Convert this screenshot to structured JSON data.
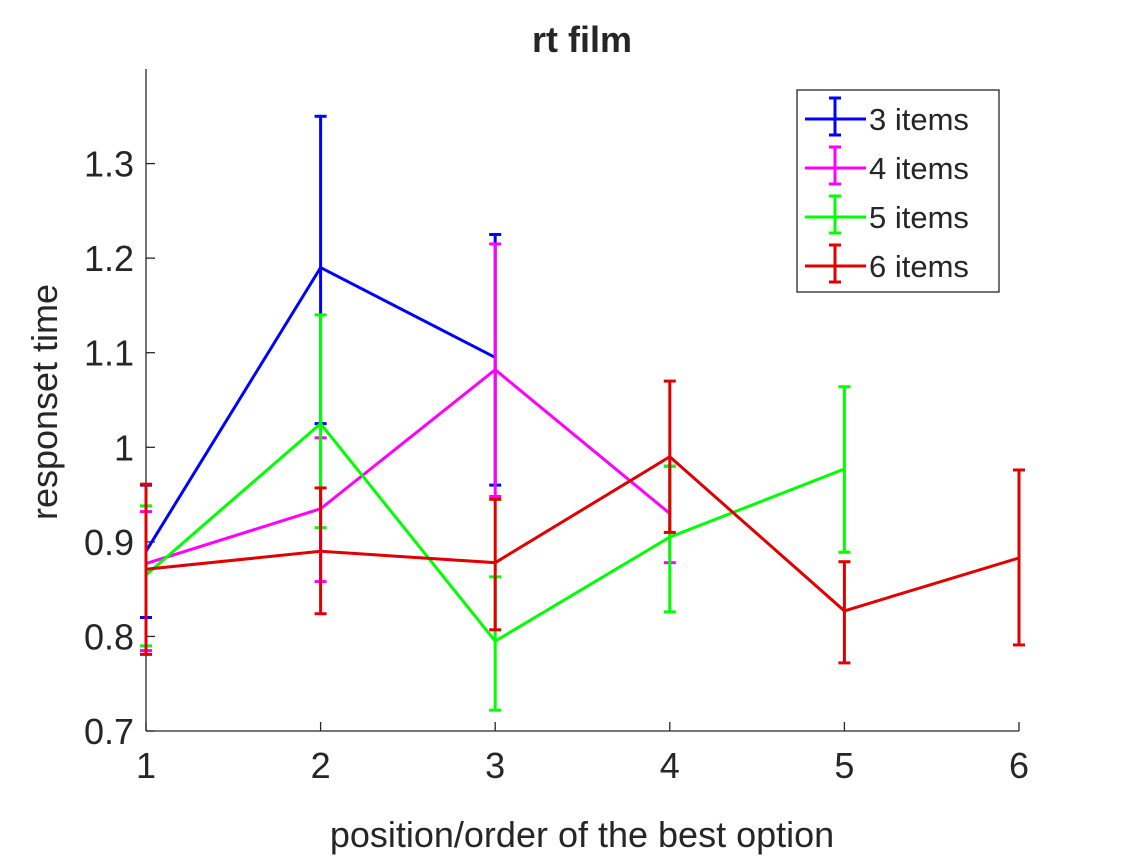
{
  "chart_data": {
    "type": "line",
    "title": "rt film",
    "xlabel": "position/order of the best option",
    "ylabel": "responset time",
    "xlim": [
      1,
      6
    ],
    "ylim": [
      0.7,
      1.4
    ],
    "xticks": [
      1,
      2,
      3,
      4,
      5,
      6
    ],
    "xtick_labels": [
      "1",
      "2",
      "3",
      "4",
      "5",
      "6"
    ],
    "yticks": [
      0.7,
      0.8,
      0.9,
      1.0,
      1.1,
      1.2,
      1.3
    ],
    "ytick_labels": [
      "0.7",
      "0.8",
      "0.9",
      "1",
      "1.1",
      "1.2",
      "1.3"
    ],
    "grid": false,
    "legend_position": "top-right",
    "error_bars": true,
    "series": [
      {
        "name": "3 items",
        "color": "#0000ff",
        "x": [
          1,
          2,
          3
        ],
        "y": [
          0.89,
          1.19,
          1.095
        ],
        "err_low": [
          0.82,
          1.025,
          0.96
        ],
        "err_high": [
          0.96,
          1.35,
          1.225
        ]
      },
      {
        "name": "4 items",
        "color": "#ff00ff",
        "x": [
          1,
          2,
          3,
          4
        ],
        "y": [
          0.877,
          0.935,
          1.082,
          0.93
        ],
        "err_low": [
          0.785,
          0.858,
          0.948,
          0.878
        ],
        "err_high": [
          0.932,
          1.01,
          1.215,
          0.98
        ]
      },
      {
        "name": "5 items",
        "color": "#00ff00",
        "x": [
          1,
          2,
          3,
          4,
          5
        ],
        "y": [
          0.865,
          1.025,
          0.795,
          0.905,
          0.977
        ],
        "err_low": [
          0.79,
          0.915,
          0.722,
          0.826,
          0.889
        ],
        "err_high": [
          0.938,
          1.14,
          0.863,
          0.98,
          1.064
        ]
      },
      {
        "name": "6 items",
        "color": "#e00000",
        "x": [
          1,
          2,
          3,
          4,
          5,
          6
        ],
        "y": [
          0.871,
          0.89,
          0.878,
          0.99,
          0.827,
          0.883
        ],
        "err_low": [
          0.781,
          0.824,
          0.807,
          0.91,
          0.772,
          0.791
        ],
        "err_high": [
          0.961,
          0.957,
          0.945,
          1.07,
          0.879,
          0.976
        ]
      }
    ]
  }
}
